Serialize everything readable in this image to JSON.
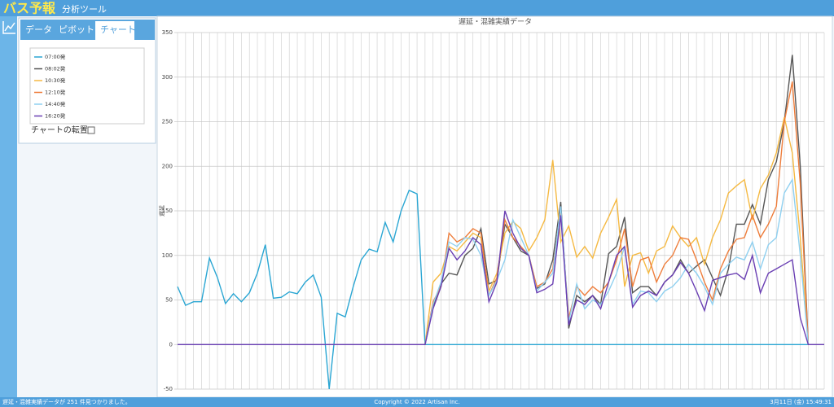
{
  "header": {
    "title": "バス予報",
    "subtitle": "分析ツール"
  },
  "tabs": [
    "データ",
    "ピボット",
    "チャート"
  ],
  "transpose_label": "チャートの転置",
  "footer": {
    "status": "遅延・混雑実績データが 251 件見つかりました。",
    "copyright": "Copyright © 2022 Artisan Inc.",
    "datetime": "3月11日 (金) 15:49:31"
  },
  "chart_data": {
    "type": "line",
    "title": "遅延・混雑実績データ",
    "y_label": "遅延",
    "ylim": [
      -50,
      350
    ],
    "yticks": [
      -50,
      0,
      50,
      100,
      150,
      200,
      250,
      300,
      350
    ],
    "grid": true,
    "series": [
      {
        "name": "07:00発",
        "color": "#2aa6d3",
        "values": [
          65,
          44,
          48,
          48,
          97,
          75,
          46,
          57,
          48,
          58,
          80,
          112,
          52,
          53,
          59,
          57,
          70,
          78,
          53,
          -50,
          35,
          31,
          65,
          95,
          107,
          104,
          137,
          115,
          150,
          173,
          169,
          0,
          0,
          0,
          0,
          0,
          0,
          0,
          0,
          0,
          0,
          0,
          0,
          0,
          0,
          0,
          0,
          0,
          0,
          0,
          0,
          0,
          0,
          0,
          0,
          0,
          0,
          0,
          0,
          0,
          0,
          0,
          0,
          0,
          0,
          0,
          0,
          0,
          0,
          0,
          0,
          0,
          0,
          0,
          0,
          0,
          0,
          0,
          0,
          0,
          0,
          0
        ]
      },
      {
        "name": "08:02発",
        "color": "#555555",
        "values": [
          0,
          0,
          0,
          0,
          0,
          0,
          0,
          0,
          0,
          0,
          0,
          0,
          0,
          0,
          0,
          0,
          0,
          0,
          0,
          0,
          0,
          0,
          0,
          0,
          0,
          0,
          0,
          0,
          0,
          0,
          0,
          0,
          42,
          68,
          80,
          78,
          100,
          108,
          130,
          68,
          72,
          135,
          120,
          105,
          100,
          63,
          68,
          95,
          160,
          18,
          55,
          48,
          55,
          45,
          102,
          110,
          143,
          58,
          65,
          65,
          55,
          70,
          78,
          95,
          80,
          88,
          95,
          75,
          55,
          85,
          135,
          135,
          157,
          135,
          185,
          205,
          250,
          325,
          200,
          0,
          0,
          0
        ]
      },
      {
        "name": "10:30発",
        "color": "#f5b942",
        "values": [
          0,
          0,
          0,
          0,
          0,
          0,
          0,
          0,
          0,
          0,
          0,
          0,
          0,
          0,
          0,
          0,
          0,
          0,
          0,
          0,
          0,
          0,
          0,
          0,
          0,
          0,
          0,
          0,
          0,
          0,
          0,
          0,
          70,
          80,
          110,
          105,
          115,
          125,
          120,
          60,
          80,
          125,
          138,
          130,
          105,
          120,
          140,
          207,
          115,
          133,
          98,
          110,
          97,
          125,
          143,
          163,
          65,
          100,
          103,
          80,
          105,
          110,
          133,
          120,
          110,
          120,
          90,
          120,
          140,
          170,
          178,
          185,
          140,
          175,
          190,
          215,
          255,
          215,
          120,
          0,
          0,
          0
        ]
      },
      {
        "name": "12:10発",
        "color": "#ee7d3b",
        "values": [
          0,
          0,
          0,
          0,
          0,
          0,
          0,
          0,
          0,
          0,
          0,
          0,
          0,
          0,
          0,
          0,
          0,
          0,
          0,
          0,
          0,
          0,
          0,
          0,
          0,
          0,
          0,
          0,
          0,
          0,
          0,
          0,
          48,
          65,
          125,
          115,
          120,
          130,
          125,
          55,
          75,
          140,
          120,
          110,
          100,
          65,
          70,
          85,
          150,
          30,
          65,
          55,
          65,
          58,
          70,
          95,
          130,
          65,
          95,
          98,
          70,
          90,
          100,
          120,
          118,
          95,
          70,
          50,
          85,
          105,
          118,
          120,
          145,
          120,
          135,
          155,
          250,
          295,
          180,
          0,
          0,
          0
        ]
      },
      {
        "name": "14:40発",
        "color": "#8fd0f0",
        "values": [
          0,
          0,
          0,
          0,
          0,
          0,
          0,
          0,
          0,
          0,
          0,
          0,
          0,
          0,
          0,
          0,
          0,
          0,
          0,
          0,
          0,
          0,
          0,
          0,
          0,
          0,
          0,
          0,
          0,
          0,
          0,
          0,
          45,
          70,
          115,
          110,
          120,
          118,
          100,
          55,
          72,
          95,
          140,
          120,
          100,
          60,
          70,
          80,
          155,
          25,
          68,
          40,
          50,
          45,
          60,
          80,
          110,
          45,
          60,
          58,
          48,
          60,
          65,
          75,
          90,
          80,
          65,
          45,
          80,
          90,
          98,
          95,
          115,
          85,
          112,
          120,
          170,
          185,
          100,
          0,
          0,
          0
        ]
      },
      {
        "name": "16:20発",
        "color": "#6a3fb3",
        "values": [
          0,
          0,
          0,
          0,
          0,
          0,
          0,
          0,
          0,
          0,
          0,
          0,
          0,
          0,
          0,
          0,
          0,
          0,
          0,
          0,
          0,
          0,
          0,
          0,
          0,
          0,
          0,
          0,
          0,
          0,
          0,
          0,
          40,
          65,
          108,
          95,
          105,
          120,
          112,
          48,
          70,
          150,
          125,
          108,
          100,
          58,
          62,
          68,
          145,
          22,
          50,
          45,
          55,
          40,
          70,
          100,
          110,
          42,
          55,
          60,
          55,
          70,
          78,
          92,
          80,
          60,
          38,
          72,
          75,
          78,
          80,
          73,
          100,
          58,
          80,
          85,
          90,
          95,
          30,
          0,
          0,
          0
        ]
      }
    ]
  }
}
